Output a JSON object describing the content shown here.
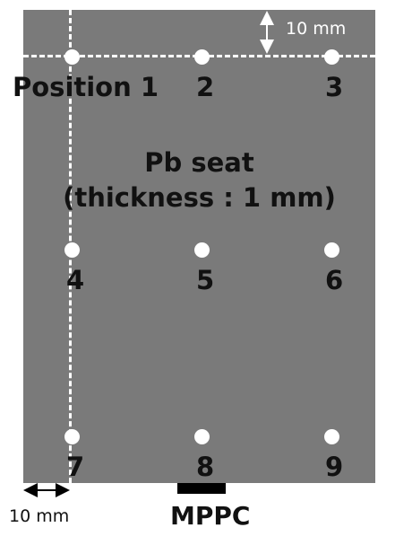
{
  "positions": [
    {
      "label": "Position 1"
    },
    {
      "label": "2"
    },
    {
      "label": "3"
    },
    {
      "label": "4"
    },
    {
      "label": "5"
    },
    {
      "label": "6"
    },
    {
      "label": "7"
    },
    {
      "label": "8"
    },
    {
      "label": "9"
    }
  ],
  "material": {
    "line1": "Pb seat",
    "line2": "(thickness : 1 mm)"
  },
  "offset_top": "10 mm",
  "offset_left": "10 mm",
  "sensor": "MPPC",
  "colors": {
    "plate": "#7a7a7a",
    "marks": "#ffffff",
    "text": "#111111",
    "sensor": "#000000"
  }
}
